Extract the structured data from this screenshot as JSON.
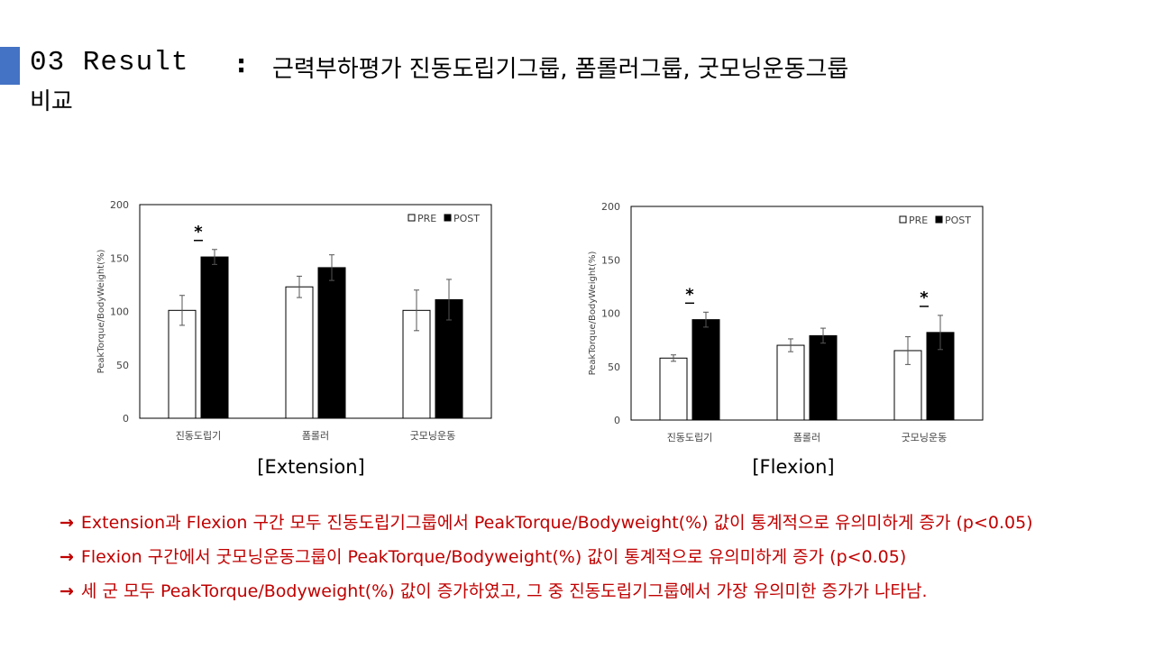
{
  "header": {
    "number": "03 Result",
    "colon": ":",
    "title_line1": "근력부하평가 진동도립기그룹, 폼롤러그룹, 굿모닝운동그룹",
    "title_line2": "비교"
  },
  "accent_color": "#4472c4",
  "bullet_color": "#c00000",
  "bullets": [
    {
      "arrow": "→",
      "text": "Extension과 Flexion 구간 모두 진동도립기그룹에서 PeakTorque/Bodyweight(%) 값이 통계적으로 유의미하게 증가 (p<0.05)"
    },
    {
      "arrow": "→",
      "text": "Flexion 구간에서 굿모닝운동그룹이 PeakTorque/Bodyweight(%) 값이 통계적으로 유의미하게 증가 (p<0.05)"
    },
    {
      "arrow": "→",
      "text": "세 군 모두 PeakTorque/Bodyweight(%)  값이 증가하였고, 그 중 진동도립기그룹에서 가장 유의미한 증가가 나타남."
    }
  ],
  "chart_data": [
    {
      "type": "bar",
      "caption": "[Extension]",
      "ylabel": "PeakTorque/BodyWeight(%)",
      "ylim": [
        0,
        200
      ],
      "yticks": [
        0,
        50,
        100,
        150,
        200
      ],
      "categories": [
        "진동도립기",
        "폼롤러",
        "굿모닝운동"
      ],
      "legend_position": "top-right",
      "series": [
        {
          "name": "PRE",
          "fill": "#ffffff",
          "values": [
            101,
            123,
            101
          ],
          "errors": [
            14,
            10,
            19
          ]
        },
        {
          "name": "POST",
          "fill": "#000000",
          "values": [
            151,
            141,
            111
          ],
          "errors": [
            7,
            12,
            19
          ]
        }
      ],
      "significance": [
        {
          "category_index": 0,
          "label": "*"
        }
      ]
    },
    {
      "type": "bar",
      "caption": "[Flexion]",
      "ylabel": "PeakTorque/BodyWeight(%)",
      "ylim": [
        0,
        200
      ],
      "yticks": [
        0,
        50,
        100,
        150,
        200
      ],
      "categories": [
        "진동도립기",
        "폼롤러",
        "굿모닝운동"
      ],
      "legend_position": "top-right",
      "series": [
        {
          "name": "PRE",
          "fill": "#ffffff",
          "values": [
            58,
            70,
            65
          ],
          "errors": [
            3,
            6,
            13
          ]
        },
        {
          "name": "POST",
          "fill": "#000000",
          "values": [
            94,
            79,
            82
          ],
          "errors": [
            7,
            7,
            16
          ]
        }
      ],
      "significance": [
        {
          "category_index": 0,
          "label": "*"
        },
        {
          "category_index": 2,
          "label": "*"
        }
      ]
    }
  ]
}
